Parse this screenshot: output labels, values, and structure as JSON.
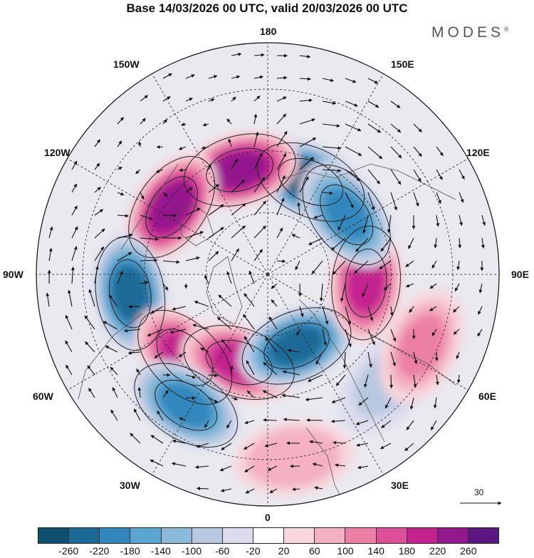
{
  "header": {
    "title": "Base 14/03/2026 00 UTC, valid 20/03/2026 00 UTC",
    "brand": "MODES",
    "brand_mark": "®"
  },
  "map": {
    "projection": "north-polar-stereographic",
    "labels": {
      "lon_180": "180",
      "lon_150w": "150W",
      "lon_150e": "150E",
      "lon_120w": "120W",
      "lon_120e": "120E",
      "lon_90w": "90W",
      "lon_90e": "90E",
      "lon_60w": "60W",
      "lon_60e": "60E",
      "lon_30w": "30W",
      "lon_30e": "30E",
      "lon_0": "0"
    },
    "anomaly_centers": [
      {
        "lon": 155,
        "lat": 57,
        "value": -260
      },
      {
        "lon": -165,
        "lat": 55,
        "value": 250
      },
      {
        "lon": -125,
        "lat": 52,
        "value": 240
      },
      {
        "lon": -82,
        "lat": 45,
        "value": -250
      },
      {
        "lon": -45,
        "lat": 52,
        "value": 200
      },
      {
        "lon": -18,
        "lat": 60,
        "value": 200
      },
      {
        "lon": 22,
        "lat": 65,
        "value": -240
      },
      {
        "lon": -32,
        "lat": 40,
        "value": -200
      },
      {
        "lon": 85,
        "lat": 58,
        "value": 200
      },
      {
        "lon": 127,
        "lat": 58,
        "value": -200
      },
      {
        "lon": 8,
        "lat": 30,
        "value": 100
      },
      {
        "lon": 48,
        "lat": 38,
        "value": -80
      },
      {
        "lon": 65,
        "lat": 35,
        "value": 120
      }
    ]
  },
  "reference_vector": {
    "value": "30"
  },
  "colorbar": {
    "colors": [
      "#0e4e6e",
      "#1b6a95",
      "#3287bd",
      "#5aa6d0",
      "#8bbbd9",
      "#b8c8e0",
      "#dcdcee",
      "#ffffff",
      "#f8d6dd",
      "#f3b1c1",
      "#ec7fa6",
      "#dc4f99",
      "#c3238f",
      "#94188d",
      "#5c1680"
    ],
    "ticks": [
      "-260",
      "-220",
      "-180",
      "-140",
      "-100",
      "-60",
      "-20",
      "20",
      "60",
      "100",
      "140",
      "180",
      "220",
      "260"
    ]
  }
}
